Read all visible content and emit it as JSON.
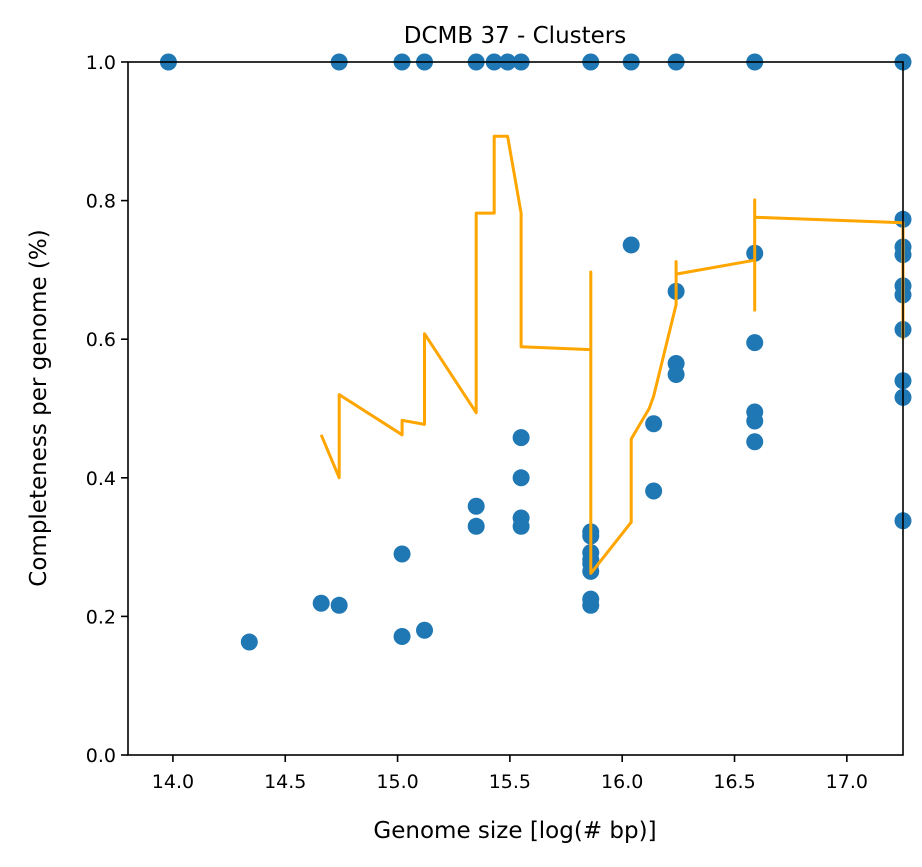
{
  "chart_data": {
    "type": "scatter",
    "title": "DCMB 37 - Clusters",
    "xlabel": "Genome size [log(# bp)]",
    "ylabel": "Completeness per genome (%)",
    "xlim": [
      13.8,
      17.25
    ],
    "ylim": [
      0.0,
      1.0
    ],
    "xticks": [
      "14.0",
      "14.5",
      "15.0",
      "15.5",
      "16.0",
      "16.5",
      "17.0"
    ],
    "yticks": [
      "0.0",
      "0.2",
      "0.4",
      "0.6",
      "0.8",
      "1.0"
    ],
    "grid": false,
    "series": [
      {
        "kind": "scatter",
        "color": "#1f77b4",
        "points": [
          [
            13.98,
            1.0
          ],
          [
            14.74,
            1.0
          ],
          [
            15.02,
            1.0
          ],
          [
            15.12,
            1.0
          ],
          [
            15.35,
            1.0
          ],
          [
            15.43,
            1.0
          ],
          [
            15.49,
            1.0
          ],
          [
            15.55,
            1.0
          ],
          [
            15.86,
            1.0
          ],
          [
            16.04,
            1.0
          ],
          [
            16.24,
            1.0
          ],
          [
            16.59,
            1.0
          ],
          [
            17.25,
            1.0
          ],
          [
            14.34,
            0.163
          ],
          [
            14.66,
            0.219
          ],
          [
            14.74,
            0.216
          ],
          [
            15.02,
            0.29
          ],
          [
            15.02,
            0.171
          ],
          [
            15.12,
            0.18
          ],
          [
            15.35,
            0.359
          ],
          [
            15.35,
            0.33
          ],
          [
            15.55,
            0.458
          ],
          [
            15.55,
            0.4
          ],
          [
            15.55,
            0.342
          ],
          [
            15.55,
            0.33
          ],
          [
            15.86,
            0.322
          ],
          [
            15.86,
            0.316
          ],
          [
            15.86,
            0.292
          ],
          [
            15.86,
            0.282
          ],
          [
            15.86,
            0.276
          ],
          [
            15.86,
            0.265
          ],
          [
            15.86,
            0.225
          ],
          [
            15.86,
            0.216
          ],
          [
            16.04,
            0.736
          ],
          [
            16.14,
            0.478
          ],
          [
            16.14,
            0.381
          ],
          [
            16.24,
            0.669
          ],
          [
            16.24,
            0.565
          ],
          [
            16.24,
            0.549
          ],
          [
            16.59,
            0.724
          ],
          [
            16.59,
            0.595
          ],
          [
            16.59,
            0.495
          ],
          [
            16.59,
            0.482
          ],
          [
            16.59,
            0.452
          ],
          [
            17.25,
            0.773
          ],
          [
            17.25,
            0.733
          ],
          [
            17.25,
            0.722
          ],
          [
            17.25,
            0.677
          ],
          [
            17.25,
            0.664
          ],
          [
            17.25,
            0.614
          ],
          [
            17.25,
            0.54
          ],
          [
            17.25,
            0.516
          ],
          [
            17.25,
            0.338
          ]
        ]
      },
      {
        "kind": "line",
        "color": "#ffa500",
        "points": [
          [
            14.66,
            0.462
          ],
          [
            14.74,
            0.4
          ],
          [
            14.74,
            0.52
          ],
          [
            15.02,
            0.462
          ],
          [
            15.02,
            0.483
          ],
          [
            15.12,
            0.477
          ],
          [
            15.12,
            0.608
          ],
          [
            15.35,
            0.494
          ],
          [
            15.35,
            0.782
          ],
          [
            15.43,
            0.782
          ],
          [
            15.43,
            0.893
          ],
          [
            15.49,
            0.893
          ],
          [
            15.55,
            0.782
          ],
          [
            15.55,
            0.589
          ],
          [
            15.86,
            0.585
          ],
          [
            15.86,
            0.697
          ],
          [
            15.86,
            0.262
          ],
          [
            16.04,
            0.336
          ],
          [
            16.04,
            0.456
          ],
          [
            16.12,
            0.5
          ],
          [
            16.14,
            0.518
          ],
          [
            16.24,
            0.65
          ],
          [
            16.24,
            0.712
          ],
          [
            16.24,
            0.694
          ],
          [
            16.59,
            0.714
          ],
          [
            16.59,
            0.642
          ],
          [
            16.59,
            0.801
          ],
          [
            16.59,
            0.776
          ],
          [
            17.25,
            0.768
          ],
          [
            17.25,
            0.6
          ]
        ]
      }
    ]
  }
}
